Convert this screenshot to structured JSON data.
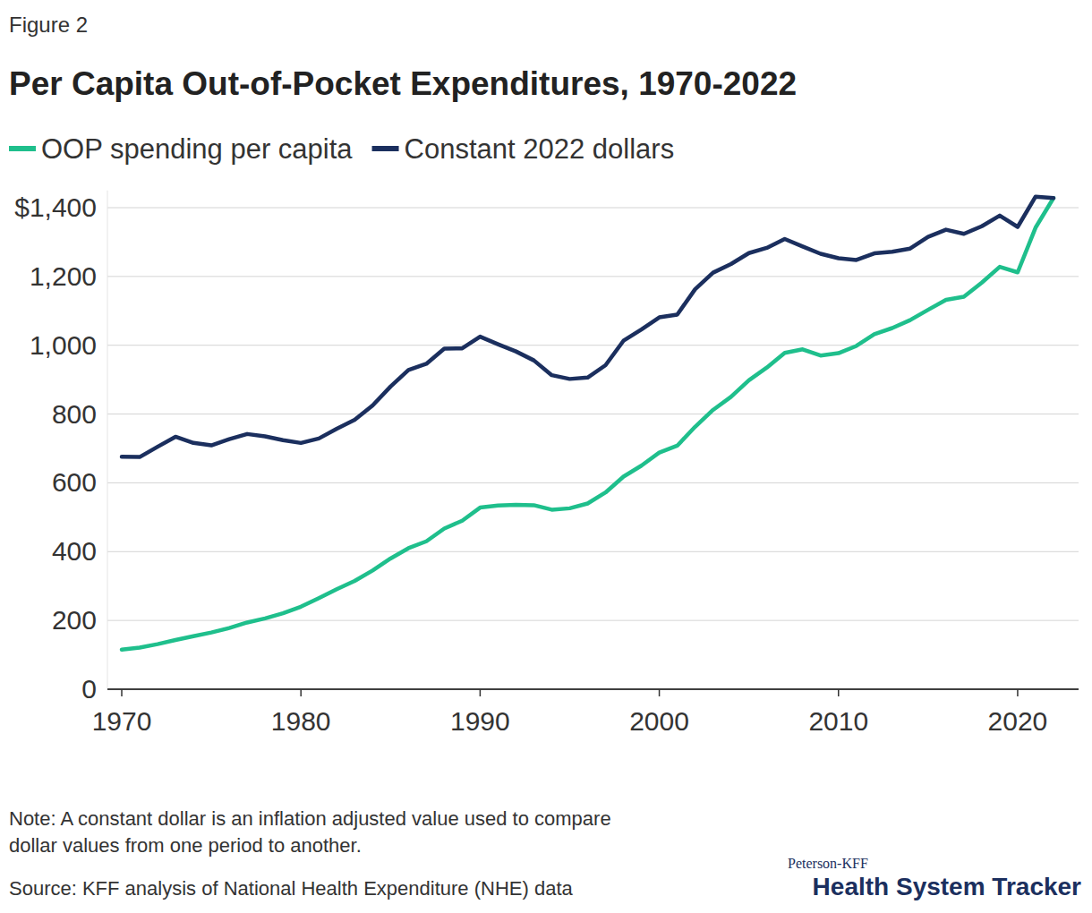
{
  "chart_data": {
    "type": "line",
    "figure_label": "Figure 2",
    "title": "Per Capita Out-of-Pocket Expenditures, 1970-2022",
    "note": [
      "Note: A constant dollar is an inflation adjusted value used to compare",
      "dollar values from one period to another."
    ],
    "source": "Source: KFF analysis of National Health Expenditure (NHE) data",
    "branding": [
      "Peterson-KFF",
      "Health System Tracker"
    ],
    "x": [
      1970,
      1971,
      1972,
      1973,
      1974,
      1975,
      1976,
      1977,
      1978,
      1979,
      1980,
      1981,
      1982,
      1983,
      1984,
      1985,
      1986,
      1987,
      1988,
      1989,
      1990,
      1991,
      1992,
      1993,
      1994,
      1995,
      1996,
      1997,
      1998,
      1999,
      2000,
      2001,
      2002,
      2003,
      2004,
      2005,
      2006,
      2007,
      2008,
      2009,
      2010,
      2011,
      2012,
      2013,
      2014,
      2015,
      2016,
      2017,
      2018,
      2019,
      2020,
      2021,
      2022
    ],
    "series": [
      {
        "name": "OOP spending per capita",
        "color": "#1fbf8c",
        "values": [
          115,
          121,
          131,
          143,
          154,
          165,
          178,
          194,
          206,
          221,
          240,
          265,
          291,
          315,
          345,
          380,
          410,
          430,
          467,
          490,
          528,
          534,
          536,
          535,
          522,
          526,
          540,
          572,
          618,
          650,
          688,
          708,
          763,
          812,
          850,
          898,
          935,
          978,
          988,
          970,
          977,
          998,
          1032,
          1050,
          1073,
          1103,
          1132,
          1141,
          1182,
          1228,
          1212,
          1342,
          1428
        ]
      },
      {
        "name": "Constant 2022 dollars",
        "color": "#1b2f5e",
        "values": [
          676,
          675,
          705,
          734,
          716,
          709,
          727,
          742,
          735,
          724,
          716,
          729,
          757,
          783,
          825,
          880,
          928,
          946,
          990,
          991,
          1025,
          1003,
          982,
          956,
          913,
          902,
          906,
          942,
          1013,
          1046,
          1081,
          1089,
          1163,
          1211,
          1236,
          1268,
          1283,
          1309,
          1287,
          1266,
          1253,
          1248,
          1267,
          1272,
          1281,
          1315,
          1336,
          1324,
          1346,
          1377,
          1344,
          1432,
          1428
        ]
      }
    ],
    "xlim": [
      1969.2,
      2023.4
    ],
    "xticks": [
      1970,
      1980,
      1990,
      2000,
      2010,
      2020
    ],
    "ylim": [
      0,
      1450
    ],
    "yticks": [
      0,
      200,
      400,
      600,
      800,
      {
        "value": 1000,
        "label": "1,000"
      },
      {
        "value": 1200,
        "label": "1,200"
      },
      {
        "value": 1400,
        "label": "$1,400"
      }
    ],
    "grid": true,
    "legend": "top"
  }
}
